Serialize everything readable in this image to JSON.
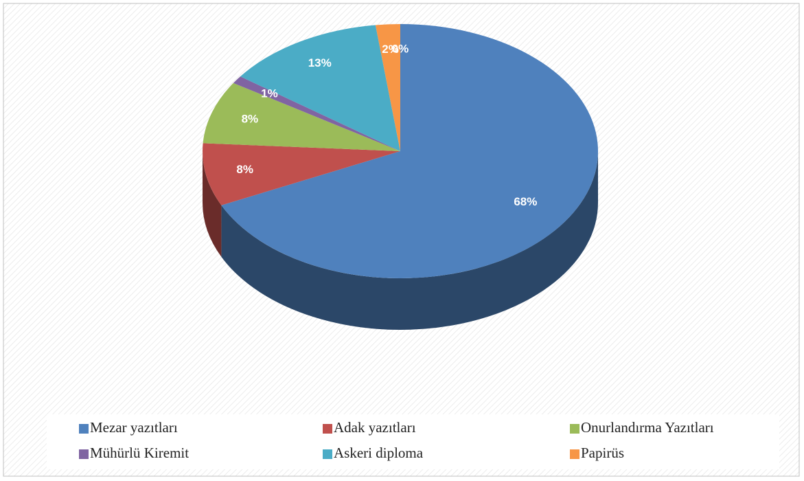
{
  "chart_data": {
    "type": "pie",
    "categories": [
      "Mezar yazıtları",
      "Adak yazıtları",
      "Onurlandırma Yazıtları",
      "Mühürlü Kiremit",
      "Askeri diploma",
      "Papirüs",
      null
    ],
    "values": [
      68,
      8,
      8,
      1,
      13,
      2,
      0
    ],
    "value_labels": [
      "68%",
      "8%",
      "8%",
      "1%",
      "13%",
      "2%",
      "0%"
    ],
    "colors": [
      "#4f81bd",
      "#c0504d",
      "#9bbb59",
      "#8064a2",
      "#4bacc6",
      "#f79646",
      "#1f3864"
    ],
    "legend": "bottom"
  }
}
